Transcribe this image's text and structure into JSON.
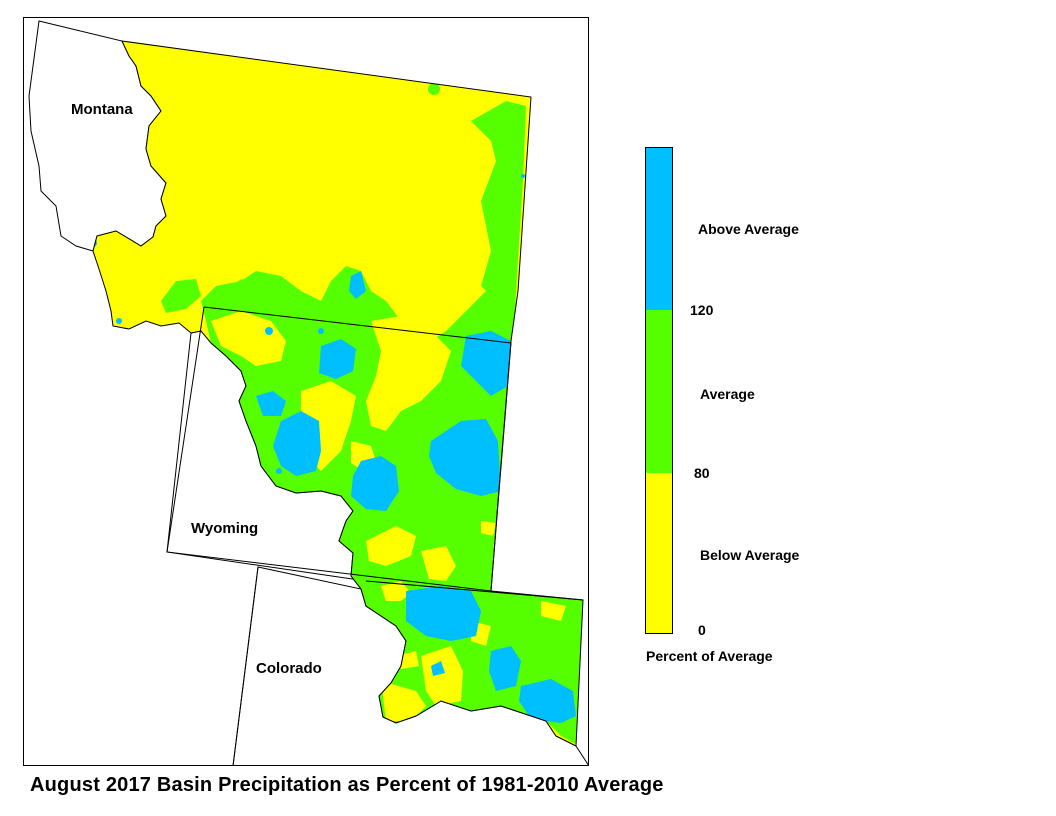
{
  "title": "August 2017 Basin Precipitation as Percent of 1981-2010 Average",
  "states": {
    "montana": "Montana",
    "wyoming": "Wyoming",
    "colorado": "Colorado"
  },
  "legend": {
    "unit_label": "Percent of Average",
    "categories": [
      {
        "label": "Above Average",
        "color": "#00bfff"
      },
      {
        "label": "Average",
        "color": "#55ff00"
      },
      {
        "label": "Below Average",
        "color": "#ffff00"
      }
    ],
    "breaks": [
      "120",
      "80",
      "0"
    ]
  },
  "colors": {
    "above": "#00bfff",
    "average": "#55ff00",
    "below": "#ffff00",
    "border": "#000000"
  }
}
